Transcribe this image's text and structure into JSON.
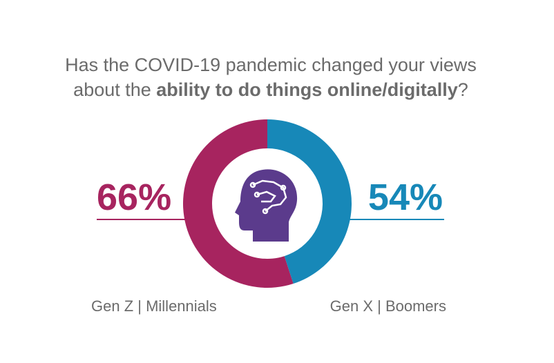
{
  "chart_data": {
    "type": "pie",
    "title": [
      "Has the COVID-19 pandemic changed your views",
      "about the ",
      "ability to do things online/digitally",
      "?"
    ],
    "categories": [
      "Gen Z | Millennials",
      "Gen X | Boomers"
    ],
    "values": [
      66,
      54
    ],
    "value_labels": [
      "66%",
      "54%"
    ],
    "colors": [
      "#a7245f",
      "#1788b8"
    ]
  }
}
